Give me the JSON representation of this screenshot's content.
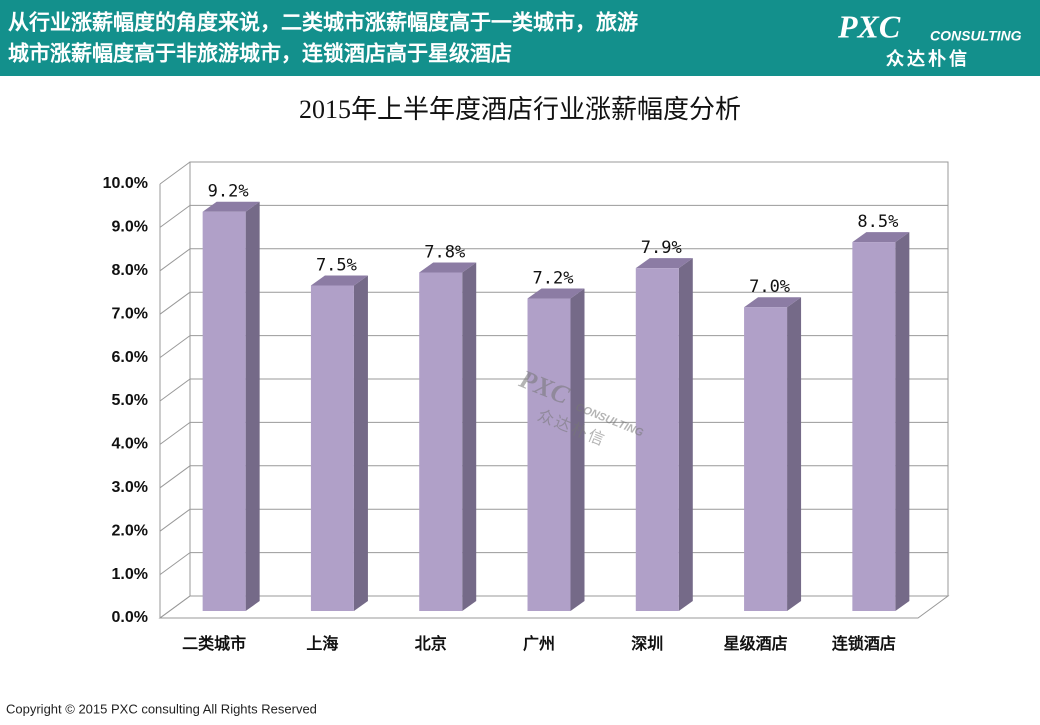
{
  "header": {
    "text_line1": "从行业涨薪幅度的角度来说，二类城市涨薪幅度高于一类城市，旅游",
    "text_line2": "城市涨薪幅度高于非旅游城市，连锁酒店高于星级酒店",
    "logo": "PXC",
    "logo_sub": "CONSULTING",
    "logo_cn": "众达朴信"
  },
  "watermark": {
    "logo": "PXC",
    "sub": "CONSULTING",
    "cn": "众达朴信"
  },
  "chart_data": {
    "type": "bar3d",
    "title": "2015年上半年度酒店行业涨薪幅度分析",
    "categories": [
      "二类城市",
      "上海",
      "北京",
      "广州",
      "深圳",
      "星级酒店",
      "连锁酒店"
    ],
    "values": [
      9.2,
      7.5,
      7.8,
      7.2,
      7.9,
      7.0,
      8.5
    ],
    "value_labels": [
      "9.2%",
      "7.5%",
      "7.8%",
      "7.2%",
      "7.9%",
      "7.0%",
      "8.5%"
    ],
    "color": "#b0a0c8",
    "ylim": [
      0,
      10
    ],
    "yticks": [
      {
        "value": 0,
        "label": "0.0%"
      },
      {
        "value": 1,
        "label": "1.0%"
      },
      {
        "value": 2,
        "label": "2.0%"
      },
      {
        "value": 3,
        "label": "3.0%"
      },
      {
        "value": 4,
        "label": "4.0%"
      },
      {
        "value": 5,
        "label": "5.0%"
      },
      {
        "value": 6,
        "label": "6.0%"
      },
      {
        "value": 7,
        "label": "7.0%"
      },
      {
        "value": 8,
        "label": "8.0%"
      },
      {
        "value": 9,
        "label": "9.0%"
      },
      {
        "value": 10,
        "label": "10.0%"
      }
    ],
    "grid": true
  },
  "footer": {
    "copyright": "Copyright © 2015  PXC consulting All Rights Reserved"
  }
}
